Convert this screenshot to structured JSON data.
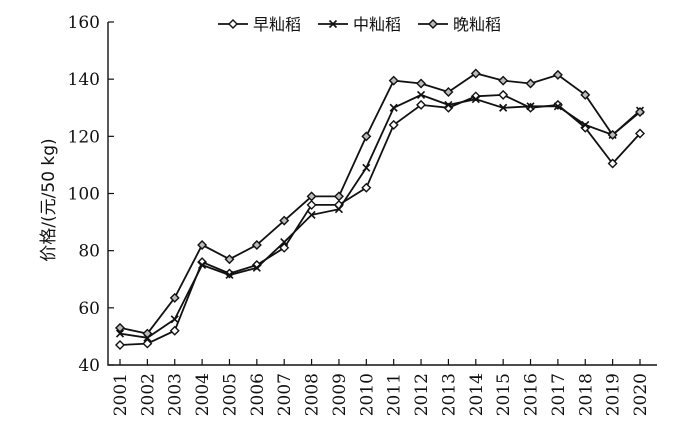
{
  "chart_data": {
    "type": "line",
    "title": "",
    "xlabel": "",
    "ylabel": "价格/(元/50 kg)",
    "x": [
      "2001",
      "2002",
      "2003",
      "2004",
      "2005",
      "2006",
      "2007",
      "2008",
      "2009",
      "2010",
      "2011",
      "2012",
      "2013",
      "2014",
      "2015",
      "2016",
      "2017",
      "2018",
      "2019",
      "2020"
    ],
    "ylim": [
      40,
      160
    ],
    "yticks": [
      40,
      60,
      80,
      100,
      120,
      140,
      160
    ],
    "grid": false,
    "legend_position": "top",
    "series": [
      {
        "name": "早籼稻",
        "marker": "diamond-open",
        "values": [
          47,
          47.5,
          52,
          76,
          72,
          75,
          81,
          96,
          96,
          102,
          124,
          131,
          130,
          134,
          134.5,
          130,
          131,
          123,
          110.5,
          121
        ]
      },
      {
        "name": "中籼稻",
        "marker": "x",
        "values": [
          51,
          49.5,
          56,
          75,
          71.5,
          74,
          83,
          92.5,
          94.5,
          109,
          130,
          134.5,
          131,
          133,
          130,
          130.5,
          130.5,
          124,
          120.5,
          129
        ]
      },
      {
        "name": "晚籼稻",
        "marker": "diamond",
        "values": [
          53,
          51,
          63.5,
          82,
          77,
          82,
          90.5,
          99,
          99,
          120,
          139.5,
          138.5,
          135.5,
          142,
          139.5,
          138.5,
          141.5,
          134.5,
          120.5,
          128.5
        ]
      }
    ]
  }
}
